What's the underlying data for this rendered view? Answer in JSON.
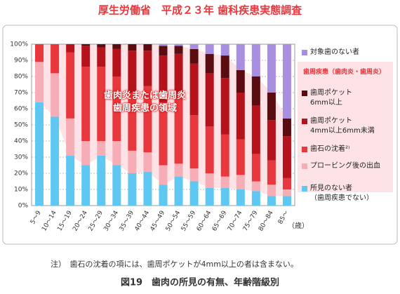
{
  "chart_data": {
    "type": "stacked_bar",
    "title": "厚生労働省　平成２３年 歯科疾患実態調査",
    "categories": [
      "5～9",
      "10～14",
      "15～19",
      "20～24",
      "25～29",
      "30～34",
      "35～39",
      "40～44",
      "45～49",
      "50～54",
      "55～59",
      "60～64",
      "65～69",
      "70～74",
      "75～79",
      "80～84",
      "85～"
    ],
    "x_label": "（歳）",
    "series": [
      {
        "name": "所見のない者\n（歯周疾患でない）",
        "color": "#5ec8f2",
        "values": [
          64,
          55,
          31,
          25,
          31,
          25,
          20,
          21,
          13,
          18,
          15,
          11,
          11,
          10,
          9,
          6,
          6
        ]
      },
      {
        "name": "プロービング後の出血",
        "color": "#f6adb6",
        "values": [
          25,
          27,
          23,
          15,
          9,
          15,
          14,
          12,
          12,
          8,
          8,
          9,
          7,
          9,
          6,
          7,
          4
        ]
      },
      {
        "name": "歯石の沈着²⁾",
        "color": "#e8383d",
        "values": [
          11,
          18,
          41,
          46,
          46,
          40,
          36,
          41,
          39,
          44,
          33,
          29,
          26,
          22,
          17,
          15,
          7
        ]
      },
      {
        "name": "歯周ポケット\n4mm以上6mm未満",
        "color": "#b5121b",
        "values": [
          0,
          0,
          5,
          13,
          12,
          17,
          26,
          22,
          29,
          24,
          32,
          33,
          35,
          29,
          30,
          25,
          26
        ]
      },
      {
        "name": "歯周ポケット\n6mm以上",
        "color": "#5a0c10",
        "values": [
          0,
          0,
          0,
          1,
          2,
          3,
          4,
          4,
          6,
          5,
          9,
          12,
          14,
          14,
          18,
          17,
          11
        ]
      },
      {
        "name": "対象歯のない者",
        "color": "#a98fe2",
        "values": [
          0,
          0,
          0,
          0,
          0,
          0,
          0,
          0,
          1,
          1,
          3,
          6,
          7,
          16,
          20,
          30,
          46
        ]
      }
    ],
    "legend_group": "歯周疾患（歯肉炎・歯周炎）",
    "annotation": "歯肉炎または歯周炎\n歯周疾患の領域",
    "ylim": [
      0,
      100
    ],
    "yticks": [
      {
        "value": 0,
        "label": "0%"
      },
      {
        "value": 10,
        "label": "10%"
      },
      {
        "value": 20,
        "label": "20%"
      },
      {
        "value": 30,
        "label": "30%"
      },
      {
        "value": 40,
        "label": "40%"
      },
      {
        "value": 50,
        "label": "50%"
      },
      {
        "value": 60,
        "label": "60%"
      },
      {
        "value": 70,
        "label": "70%"
      },
      {
        "value": 80,
        "label": "80%"
      },
      {
        "value": 90,
        "label": "90%"
      },
      {
        "value": 100,
        "label": "100%"
      }
    ],
    "grid": true,
    "note": "注）　歯石の沈着の項には、歯周ポケットが4mm以上の者は含まない。",
    "caption": "図19　歯肉の所見の有無、年齢階級別"
  }
}
